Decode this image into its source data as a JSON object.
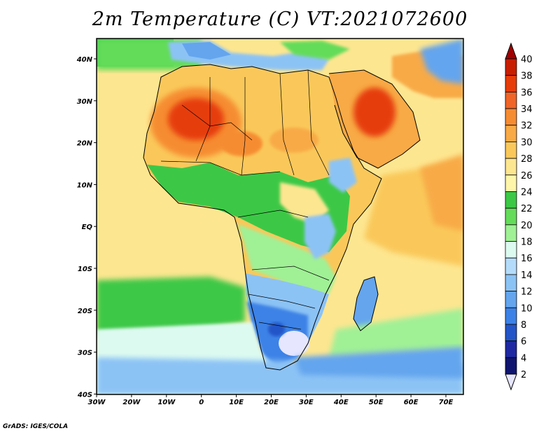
{
  "title": "2m Temperature (C) VT:2021072600",
  "credit": "GrADS: IGES/COLA",
  "map": {
    "lat_labels": [
      "40N",
      "30N",
      "20N",
      "10N",
      "EQ",
      "10S",
      "20S",
      "30S",
      "40S"
    ],
    "lon_labels": [
      "30W",
      "20W",
      "10W",
      "0",
      "10E",
      "20E",
      "30E",
      "40E",
      "50E",
      "60E",
      "70E"
    ]
  },
  "colorbar": {
    "levels": [
      "40",
      "38",
      "36",
      "34",
      "32",
      "30",
      "28",
      "26",
      "24",
      "22",
      "20",
      "18",
      "16",
      "14",
      "12",
      "10",
      "8",
      "6",
      "4",
      "2"
    ],
    "colors": [
      "#a00000",
      "#c81e00",
      "#e63c0a",
      "#f06428",
      "#f68c32",
      "#f8aa46",
      "#fac85a",
      "#fde690",
      "#fff5aa",
      "#3cc846",
      "#64dc5a",
      "#a0f096",
      "#dcfaf0",
      "#b4dcfa",
      "#8cc3f5",
      "#64a5ee",
      "#3c82e6",
      "#2355c8",
      "#1e28a0",
      "#0f146e",
      "#e6e6ff"
    ]
  },
  "regions": {
    "ocean": "ocean",
    "sahara": "sahara",
    "arabia": "arabia",
    "southern-africa": "southern-africa",
    "madagascar": "madagascar"
  }
}
